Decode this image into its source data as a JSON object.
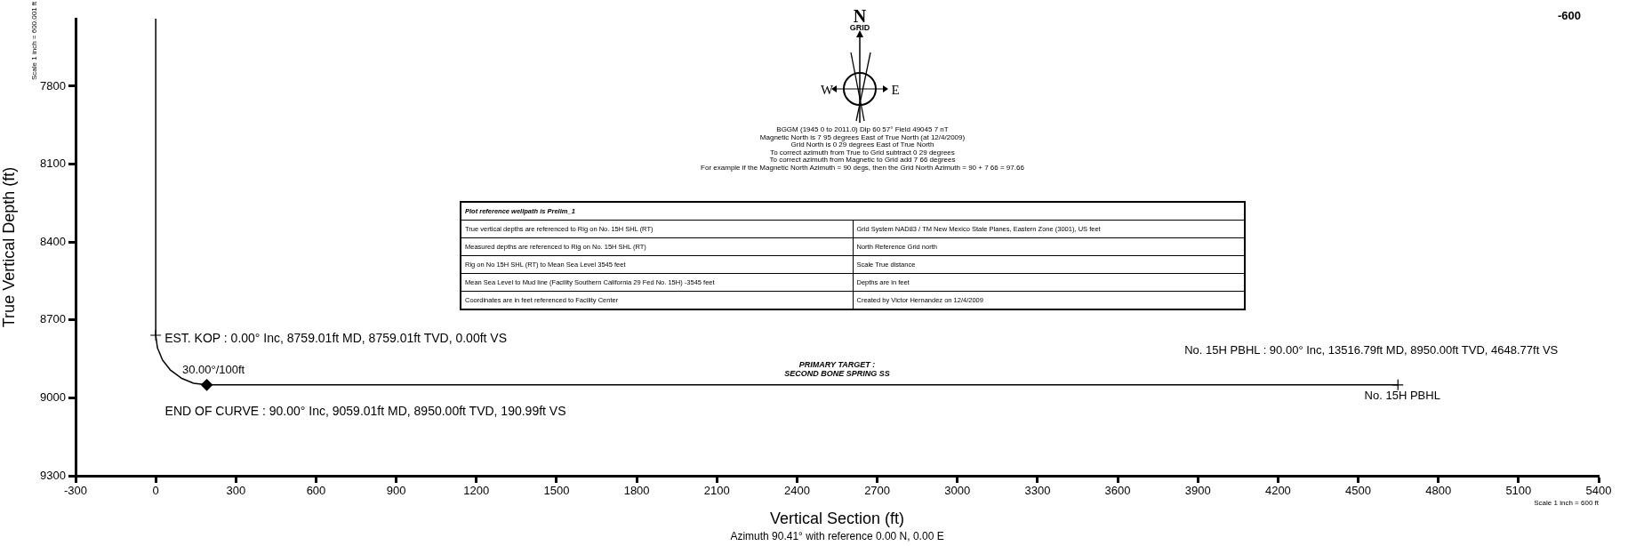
{
  "chart_data": {
    "type": "line",
    "xlabel": "Vertical Section (ft)",
    "ylabel": "True Vertical Depth (ft)",
    "xlim": [
      -300,
      5400
    ],
    "xticks": [
      -300,
      0,
      300,
      600,
      900,
      1200,
      1500,
      1800,
      2100,
      2400,
      2700,
      3000,
      3300,
      3600,
      3900,
      4200,
      4500,
      4800,
      5100,
      5400
    ],
    "ylim": [
      9300,
      7540
    ],
    "yticks": [
      7800,
      8100,
      8400,
      8700,
      9000,
      9300
    ],
    "grid": false,
    "legend": false,
    "series": [
      {
        "color": "#000000",
        "marker": "none",
        "x": [
          0,
          0,
          6.5,
          25.6,
          55.9,
          95.5,
          141.6,
          191,
          4648.77
        ],
        "values": [
          7540,
          8759,
          8808,
          8855,
          8894,
          8924,
          8944,
          8950,
          8950
        ]
      },
      {
        "type": "scatter",
        "color": "#000000",
        "marker": "diamond",
        "x": [
          190.99
        ],
        "values": [
          8950
        ]
      },
      {
        "type": "scatter",
        "color": "#000000",
        "marker": "cross",
        "x": [
          0,
          4648.77
        ],
        "values": [
          8759,
          8950
        ]
      }
    ],
    "annotations": [
      "N",
      "GRID",
      "W",
      "E",
      "BGGM (1945 0 to 2011.0) Dip 60 57° Field 49045 7 nT",
      "Magnetic North is 7 95 degrees East of True North (at 12/4/2009)",
      "Grid North is 0 29 degrees East of True North",
      "To correct azimuth from True to Grid subtract 0 29 degrees",
      "To correct azimuth from Magnetic to Grid add 7 66 degrees",
      "For example if the Magnetic North Azimuth = 90 degs, then the Grid North Azimuth = 90 + 7 66 = 97.66",
      "Plot reference wellpath is Prelim_1",
      "True vertical depths are referenced to Rig on No. 15H SHL (RT)",
      "Grid System  NAD83 / TM New Mexico State Planes, Eastern Zone (3001), US feet",
      "Measured depths are referenced to Rig on No. 15H SHL (RT)",
      "North Reference  Grid north",
      "Rig on No  15H SHL (RT) to Mean Sea Level  3545 feet",
      "Scale  True distance",
      "Mean Sea Level to Mud line (Facility  Southern California 29 Fed No. 15H)  -3545 feet",
      "Depths are in feet",
      "Coordinates are in feet referenced to Facility Center",
      "Created by  Victor Hernandez on 12/4/2009",
      {
        "text": "EST. KOP : 0.00° Inc, 8759.01ft MD, 8759.01ft TVD, 0.00ft VS",
        "x": 0,
        "y": 8759.01
      },
      {
        "text": "30.00°/100ft",
        "x": 55.94,
        "y": 8894.06
      },
      {
        "text": "END OF CURVE : 90.00° Inc, 9059.01ft MD, 8950.00ft TVD, 190.99ft VS",
        "x": 190.99,
        "y": 8950
      },
      {
        "text": "PRIMARY TARGET :\nSECOND BONE SPRING SS",
        "x": 2550,
        "y": 8950
      },
      {
        "text": "No. 15H PBHL : 90.00° Inc, 13516.79ft MD, 8950.00ft TVD, 4648.77ft VS",
        "x": 4648.77,
        "y": 8950
      },
      {
        "text": "No. 15H PBHL",
        "x": 4648.77,
        "y": 8950
      },
      "Azimuth 90.41° with reference 0.00 N, 0.00 E",
      "Scale 1 inch = 600 ft",
      "Scale 1 inch = 600.001 ft",
      "-600"
    ]
  }
}
